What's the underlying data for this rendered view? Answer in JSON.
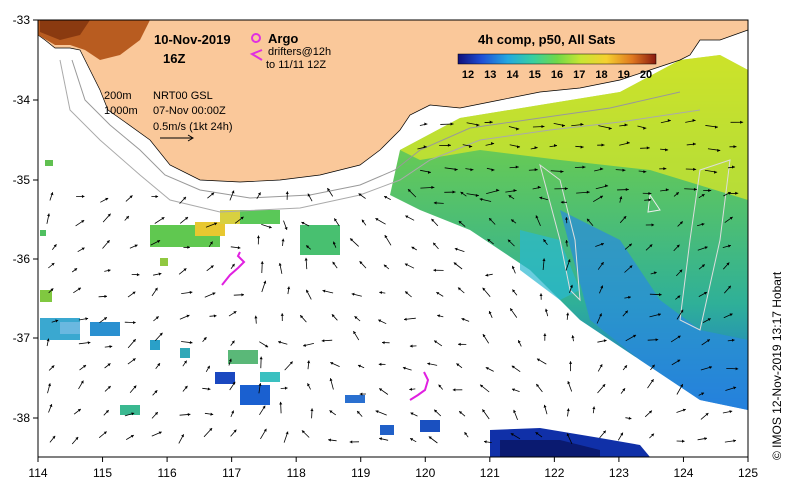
{
  "title": {
    "date": "10-Nov-2019",
    "hour": "16Z"
  },
  "legend": {
    "argo_label": "Argo",
    "drifters_label": "drifters@12h",
    "drifters_period": "to 11/11 12Z",
    "contour_200": "200m",
    "contour_1000": "1000m",
    "model": "NRT00 GSL",
    "model_time": "07-Nov 00:00Z",
    "scale_arrow": "0.5m/s (1kt 24h)"
  },
  "colorbar": {
    "title": "4h comp, p50, All Sats",
    "ticks": [
      "12",
      "13",
      "14",
      "15",
      "16",
      "17",
      "18",
      "19",
      "20"
    ],
    "colors": [
      "#1a1a9e",
      "#1f5fd6",
      "#23a8e0",
      "#3ed08f",
      "#7ad84a",
      "#c8e632",
      "#f5c830",
      "#e07820",
      "#a8301a"
    ]
  },
  "axes": {
    "x_ticks": [
      "114",
      "115",
      "116",
      "117",
      "118",
      "119",
      "120",
      "121",
      "122",
      "123",
      "124",
      "125"
    ],
    "y_ticks": [
      "-33",
      "-34",
      "-35",
      "-36",
      "-37",
      "-38"
    ]
  },
  "credit": "© IMOS 12-Nov-2019 13:17 Hobart",
  "colors": {
    "land": "#fac89a",
    "argo": "#e030e0",
    "drifter": "#e020e0",
    "contour": "#999999",
    "frame": "#000000"
  }
}
